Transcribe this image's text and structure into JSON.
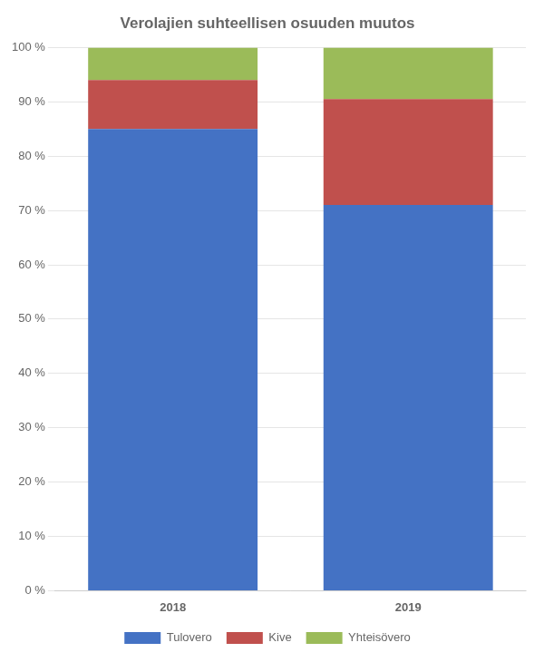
{
  "chart_data": {
    "type": "bar",
    "title": "Verolajien suhteellisen osuuden muutos",
    "categories": [
      "2018",
      "2019"
    ],
    "series": [
      {
        "name": "Tulovero",
        "color": "#4472C4",
        "values": [
          85.0,
          71.0
        ]
      },
      {
        "name": "Kive",
        "color": "#C0504D",
        "values": [
          9.0,
          19.5
        ]
      },
      {
        "name": "Yhteisövero",
        "color": "#9BBB59",
        "values": [
          6.0,
          9.5
        ]
      }
    ],
    "stacked": true,
    "ylim": [
      0,
      100
    ],
    "yticks": [
      {
        "value": 0,
        "label": "0 %"
      },
      {
        "value": 10,
        "label": "10 %"
      },
      {
        "value": 20,
        "label": "20 %"
      },
      {
        "value": 30,
        "label": "30 %"
      },
      {
        "value": 40,
        "label": "40 %"
      },
      {
        "value": 50,
        "label": "50 %"
      },
      {
        "value": 60,
        "label": "60 %"
      },
      {
        "value": 70,
        "label": "70 %"
      },
      {
        "value": 80,
        "label": "80 %"
      },
      {
        "value": 90,
        "label": "90 %"
      },
      {
        "value": 100,
        "label": "100 %"
      }
    ],
    "grid": true,
    "legend": "bottom"
  }
}
